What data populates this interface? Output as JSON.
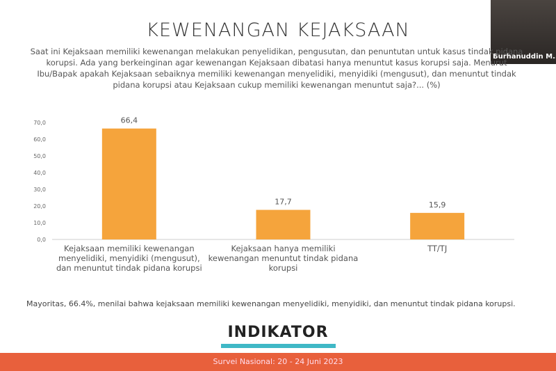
{
  "slide": {
    "title": "KEWENANGAN KEJAKSAAN",
    "question": "Saat ini Kejaksaan memiliki kewenangan melakukan penyelidikan, pengusutan, dan penuntutan untuk kasus tindak pidana korupsi. Ada yang berkeinginan agar kewenangan Kejaksaan dibatasi hanya menuntut kasus korupsi saja. Menurut Ibu/Bapak apakah Kejaksaan sebaiknya memiliki kewenangan menyelidiki, menyidiki (mengusut), dan menuntut tindak pidana korupsi atau Kejaksaan cukup memiliki kewenangan menuntut saja?... (%)",
    "conclusion": "Mayoritas, 66.4%, menilai bahwa kejaksaan memiliki kewenangan menyelidiki, menyidiki, dan menuntut tindak pidana korupsi.",
    "logo": "INDIKATOR",
    "footer": "Survei Nasional: 20 - 24 Juni 2023"
  },
  "video": {
    "name": "Burhanuddin M..."
  },
  "chart_data": {
    "type": "bar",
    "categories": [
      "Kejaksaan memiliki kewenangan menyelidiki, menyidiki (mengusut), dan menuntut tindak pidana korupsi",
      "Kejaksaan hanya memiliki kewenangan menuntut tindak pidana korupsi",
      "TT/TJ"
    ],
    "values": [
      66.4,
      17.7,
      15.9
    ],
    "value_labels": [
      "66,4",
      "17,7",
      "15,9"
    ],
    "color": "#f5a43c",
    "ylim": [
      0,
      70
    ],
    "yticks": [
      {
        "value": 0,
        "label": "0,0"
      },
      {
        "value": 10,
        "label": "10,0"
      },
      {
        "value": 20,
        "label": "20,0"
      },
      {
        "value": 30,
        "label": "30,0"
      },
      {
        "value": 40,
        "label": "40,0"
      },
      {
        "value": 50,
        "label": "50,0"
      },
      {
        "value": 60,
        "label": "60,0"
      },
      {
        "value": 70,
        "label": "70,0"
      }
    ]
  }
}
